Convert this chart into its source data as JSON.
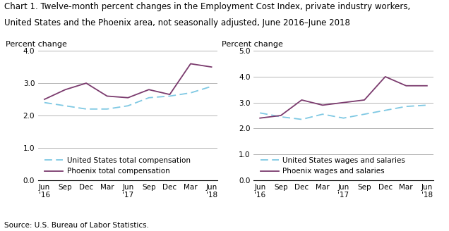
{
  "title_line1": "Chart 1. Twelve-month percent changes in the Employment Cost Index, private industry workers,",
  "title_line2": "United States and the Phoenix area, not seasonally adjusted, June 2016–June 2018",
  "source": "Source: U.S. Bureau of Labor Statistics.",
  "x_ticks": [
    0,
    1,
    2,
    3,
    4,
    5,
    6,
    7,
    8
  ],
  "x_labels": [
    "Jun\n'16",
    "Sep",
    "Dec",
    "Mar",
    "Jun\n'17",
    "Sep",
    "Dec",
    "Mar",
    "Jun\n'18"
  ],
  "left_chart": {
    "ylabel": "Percent change",
    "ylim": [
      0.0,
      4.0
    ],
    "yticks": [
      0.0,
      1.0,
      2.0,
      3.0,
      4.0
    ],
    "us_total_comp": [
      2.4,
      2.3,
      2.2,
      2.2,
      2.3,
      2.55,
      2.6,
      2.7,
      2.9
    ],
    "phoenix_total_comp": [
      2.5,
      2.8,
      3.0,
      2.6,
      2.55,
      2.8,
      2.65,
      3.6,
      3.5
    ],
    "legend1": "United States total compensation",
    "legend2": "Phoenix total compensation"
  },
  "right_chart": {
    "ylabel": "Percent change",
    "ylim": [
      0.0,
      5.0
    ],
    "yticks": [
      0.0,
      1.0,
      2.0,
      3.0,
      4.0,
      5.0
    ],
    "us_wages_sal": [
      2.6,
      2.45,
      2.35,
      2.55,
      2.4,
      2.55,
      2.7,
      2.85,
      2.9
    ],
    "phoenix_wages_sal": [
      2.4,
      2.5,
      3.1,
      2.9,
      3.0,
      3.1,
      4.0,
      3.65,
      3.65
    ],
    "legend1": "United States wages and salaries",
    "legend2": "Phoenix wages and salaries"
  },
  "us_color": "#7EC8E3",
  "phoenix_color": "#7B3B6E",
  "title_fontsize": 8.5,
  "ylabel_fontsize": 8.0,
  "tick_fontsize": 7.5,
  "legend_fontsize": 7.5,
  "source_fontsize": 7.5
}
